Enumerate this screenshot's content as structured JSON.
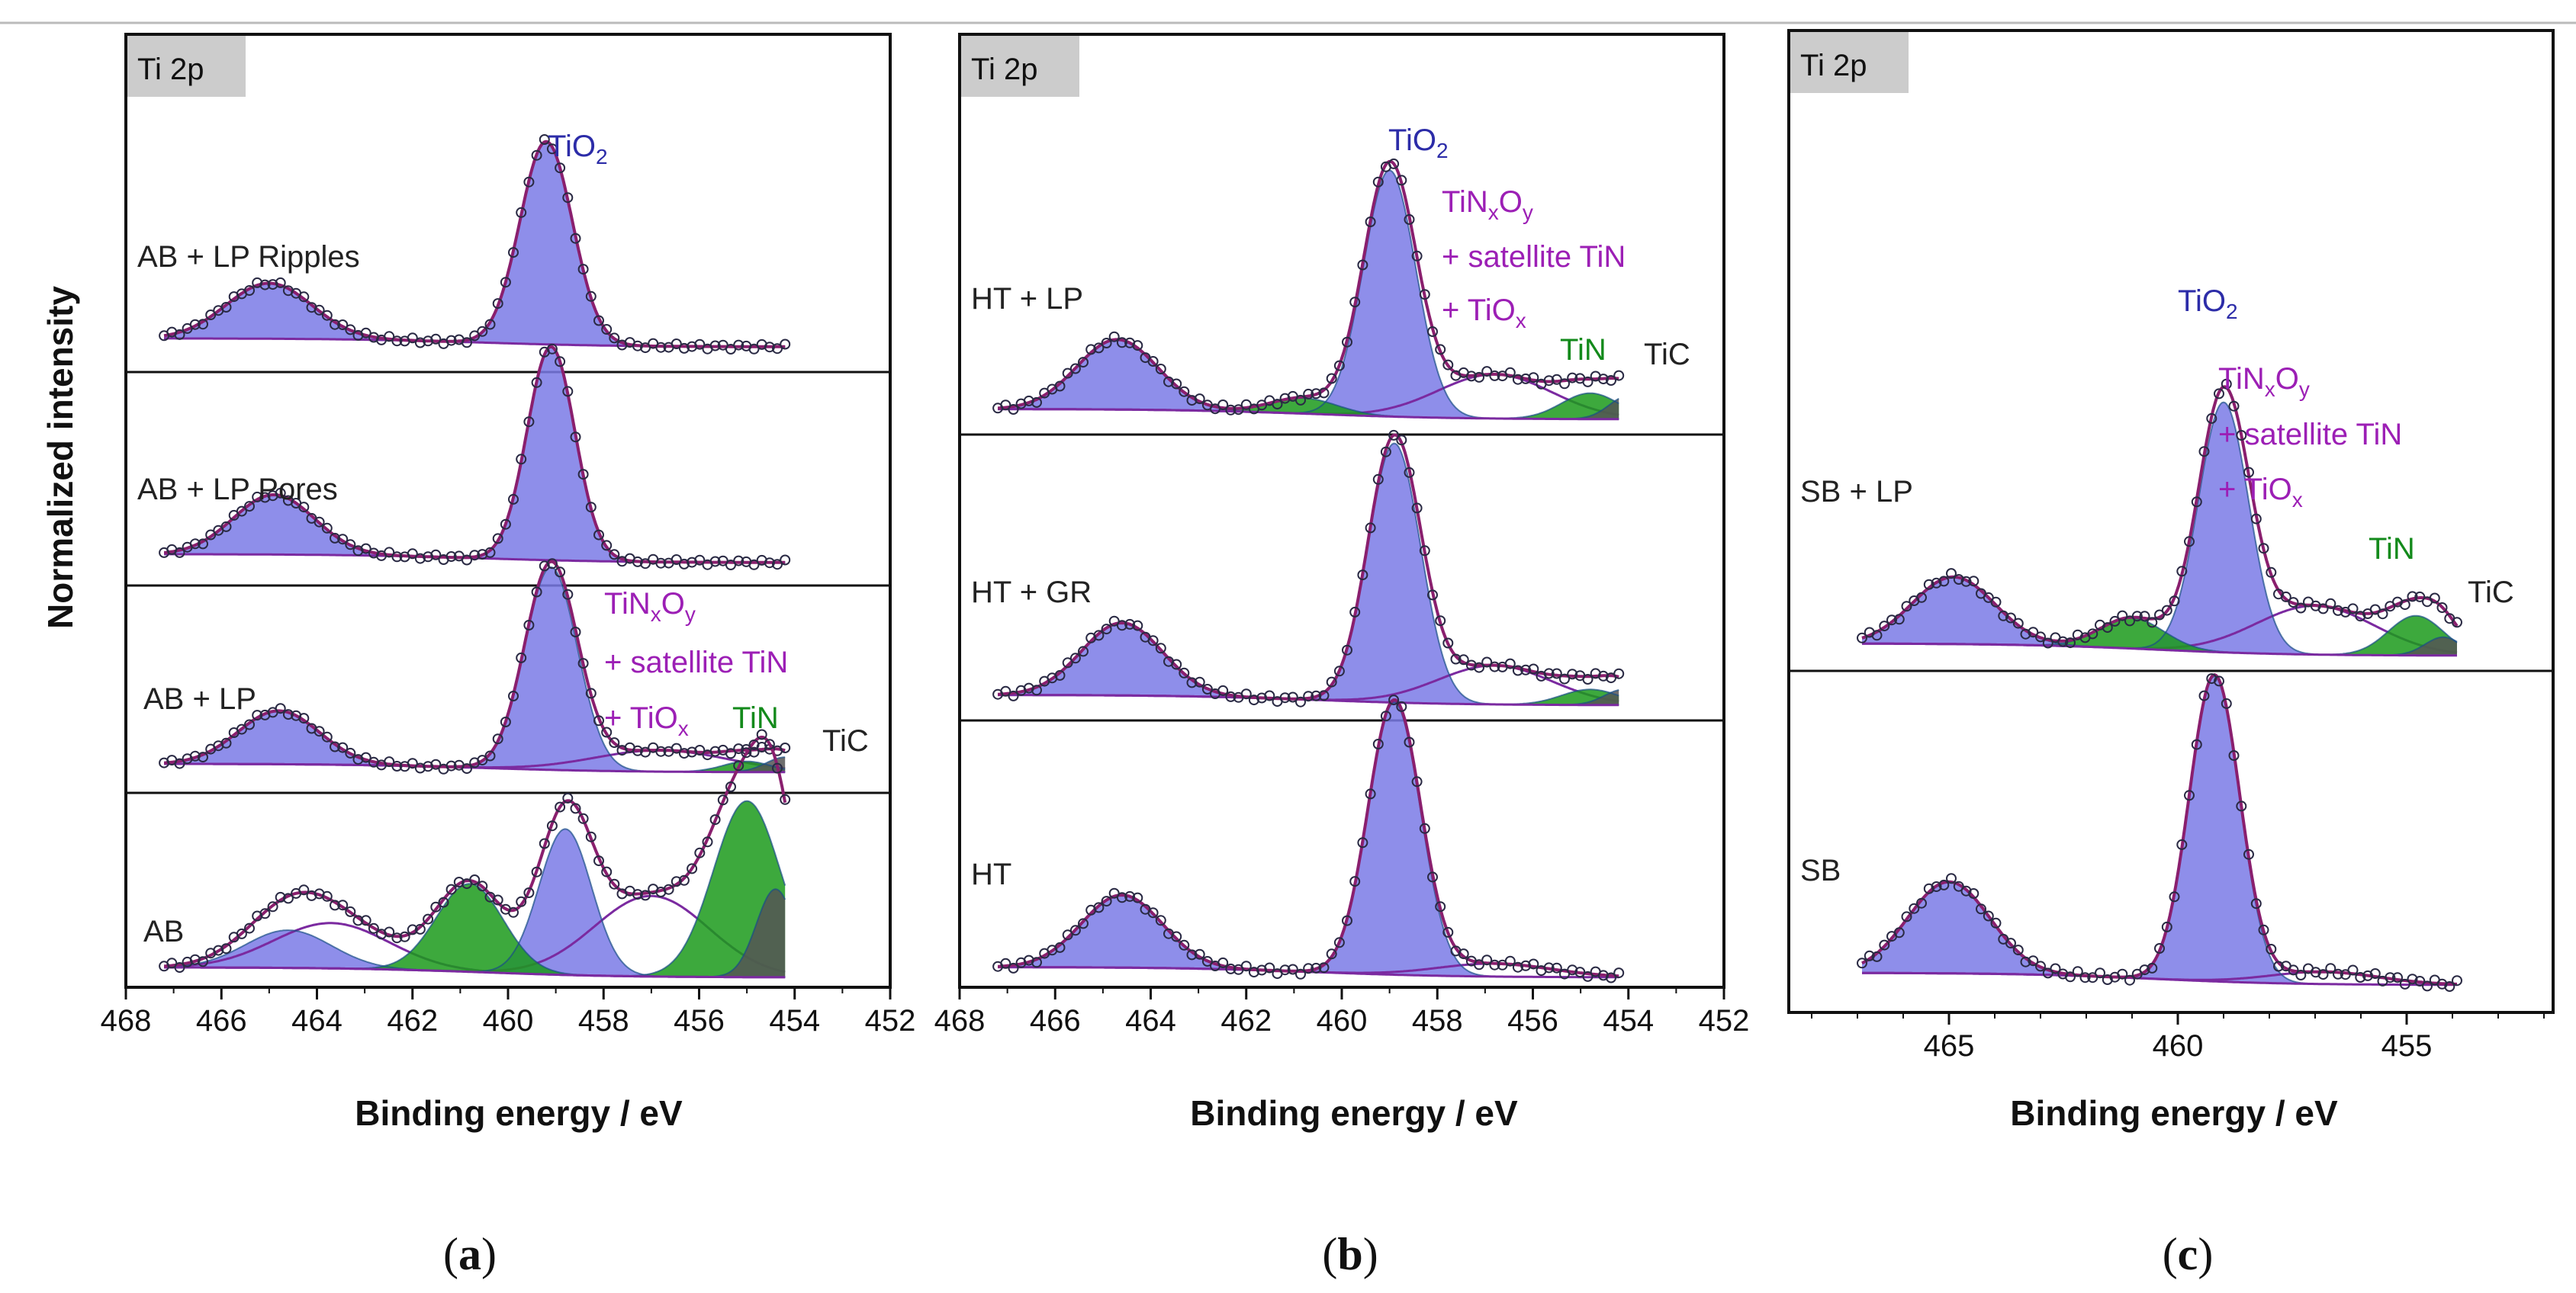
{
  "figure": {
    "ylabel": "Normalized intensity",
    "colors": {
      "tio2": "#2c2ca8",
      "tinxoy": "#9c1fb5",
      "tin": "#138a1b",
      "tic": "#222222",
      "fill_tio2": "#7a7ae6",
      "fill_tin": "#1b9a1b",
      "fill_tic": "#555555",
      "envelope": "#8a1f6e",
      "baseline_line": "#7b2aa0",
      "component_line": "#1a4f86"
    }
  },
  "chart_data": [
    {
      "id": "a",
      "type": "line",
      "panel_label": "Ti 2p",
      "caption": {
        "open": "(",
        "letter": "a",
        "close": ")"
      },
      "xlabel": "Binding energy / eV",
      "ylabel": "Normalized intensity",
      "xlim": [
        468,
        452
      ],
      "xticks": [
        "468",
        "466",
        "464",
        "462",
        "460",
        "458",
        "456",
        "454",
        "452"
      ],
      "series": [
        {
          "name": "AB + LP Ripples",
          "order": 0,
          "peaks": [
            {
              "species": "TiO2",
              "center": 459.2,
              "height": 0.95,
              "width": 0.55,
              "color": "tio2"
            },
            {
              "species": "TiO2",
              "center": 465.0,
              "height": 0.26,
              "width": 0.9,
              "color": "tio2"
            }
          ]
        },
        {
          "name": "AB +  LP Pores",
          "order": 1,
          "peaks": [
            {
              "species": "TiO2",
              "center": 459.1,
              "height": 1.0,
              "width": 0.5,
              "color": "tio2"
            },
            {
              "species": "TiO2",
              "center": 464.9,
              "height": 0.28,
              "width": 0.85,
              "color": "tio2"
            }
          ]
        },
        {
          "name": "AB + LP",
          "order": 2,
          "peaks": [
            {
              "species": "TiO2",
              "center": 459.1,
              "height": 0.95,
              "width": 0.55,
              "color": "tio2"
            },
            {
              "species": "TiO2",
              "center": 464.8,
              "height": 0.25,
              "width": 0.85,
              "color": "tio2"
            },
            {
              "species": "TiNxOy",
              "center": 456.8,
              "height": 0.1,
              "width": 1.4,
              "color": "tinxoy"
            },
            {
              "species": "TiN",
              "center": 455.0,
              "height": 0.05,
              "width": 0.5,
              "color": "tin"
            },
            {
              "species": "TiC",
              "center": 454.2,
              "height": 0.07,
              "width": 0.4,
              "color": "tic"
            }
          ]
        },
        {
          "name": "AB",
          "order": 3,
          "peaks": [
            {
              "species": "TiO2",
              "center": 458.8,
              "height": 0.58,
              "width": 0.55,
              "color": "tio2"
            },
            {
              "species": "TiO2",
              "center": 464.6,
              "height": 0.15,
              "width": 0.9,
              "color": "tio2"
            },
            {
              "species": "TiNxOy",
              "center": 457.0,
              "height": 0.32,
              "width": 1.2,
              "color": "tinxoy"
            },
            {
              "species": "TiNxOy",
              "center": 463.7,
              "height": 0.18,
              "width": 1.2,
              "color": "tinxoy"
            },
            {
              "species": "TiN",
              "center": 455.0,
              "height": 0.7,
              "width": 0.7,
              "color": "tin"
            },
            {
              "species": "TiN",
              "center": 460.8,
              "height": 0.35,
              "width": 0.7,
              "color": "tin"
            },
            {
              "species": "TiC",
              "center": 454.4,
              "height": 0.35,
              "width": 0.4,
              "color": "tic"
            }
          ]
        }
      ],
      "annotations": {
        "tio2": {
          "main": "TiO",
          "sub": "2"
        },
        "tinxoy": {
          "l1a": "TiN",
          "l1b": "x",
          "l1c": "O",
          "l1d": "y",
          "l2": "+ satellite TiN",
          "l3a": "+ TiO",
          "l3b": "x"
        },
        "tin": "TiN",
        "tic": "TiC"
      }
    },
    {
      "id": "b",
      "type": "line",
      "panel_label": "Ti 2p",
      "caption": {
        "open": "(",
        "letter": "b",
        "close": ")"
      },
      "xlabel": "Binding energy / eV",
      "ylabel": "Normalized intensity",
      "xlim": [
        468,
        452
      ],
      "xticks": [
        "468",
        "466",
        "464",
        "462",
        "460",
        "458",
        "456",
        "454",
        "452"
      ],
      "series": [
        {
          "name": "HT + LP",
          "order": 0,
          "peaks": [
            {
              "species": "TiO2",
              "center": 459.0,
              "height": 0.95,
              "width": 0.55,
              "color": "tio2"
            },
            {
              "species": "TiO2",
              "center": 464.7,
              "height": 0.27,
              "width": 0.85,
              "color": "tio2"
            },
            {
              "species": "TiNxOy",
              "center": 456.8,
              "height": 0.17,
              "width": 1.2,
              "color": "tinxoy"
            },
            {
              "species": "TiN",
              "center": 454.8,
              "height": 0.1,
              "width": 0.6,
              "color": "tin"
            },
            {
              "species": "TiN",
              "center": 460.8,
              "height": 0.06,
              "width": 0.7,
              "color": "tin"
            },
            {
              "species": "TiC",
              "center": 454.0,
              "height": 0.09,
              "width": 0.4,
              "color": "tic"
            }
          ]
        },
        {
          "name": "HT + GR",
          "order": 1,
          "peaks": [
            {
              "species": "TiO2",
              "center": 458.9,
              "height": 1.0,
              "width": 0.55,
              "color": "tio2"
            },
            {
              "species": "TiO2",
              "center": 464.6,
              "height": 0.28,
              "width": 0.85,
              "color": "tio2"
            },
            {
              "species": "TiNxOy",
              "center": 456.8,
              "height": 0.15,
              "width": 1.2,
              "color": "tinxoy"
            },
            {
              "species": "TiN",
              "center": 454.8,
              "height": 0.06,
              "width": 0.6,
              "color": "tin"
            },
            {
              "species": "TiC",
              "center": 454.1,
              "height": 0.06,
              "width": 0.4,
              "color": "tic"
            }
          ]
        },
        {
          "name": "HT",
          "order": 2,
          "peaks": [
            {
              "species": "TiO2",
              "center": 458.9,
              "height": 1.05,
              "width": 0.55,
              "color": "tio2"
            },
            {
              "species": "TiO2",
              "center": 464.6,
              "height": 0.28,
              "width": 0.85,
              "color": "tio2"
            },
            {
              "species": "TiNxOy",
              "center": 456.8,
              "height": 0.05,
              "width": 1.2,
              "color": "tinxoy"
            }
          ]
        }
      ],
      "annotations": {
        "tio2": {
          "main": "TiO",
          "sub": "2"
        },
        "tinxoy": {
          "l1a": "TiN",
          "l1b": "x",
          "l1c": "O",
          "l1d": "y",
          "l2": "+ satellite TiN",
          "l3a": "+ TiO",
          "l3b": "x"
        },
        "tin": "TiN",
        "tic": "TiC"
      }
    },
    {
      "id": "c",
      "type": "line",
      "panel_label": "Ti 2p",
      "caption": {
        "open": "(",
        "letter": "c",
        "close": ")"
      },
      "xlabel": "Binding energy / eV",
      "ylabel": "Normalized intensity",
      "xlim": [
        468.5,
        451.8
      ],
      "xticks": [
        "465",
        "460",
        "455"
      ],
      "series": [
        {
          "name": "SB + LP",
          "order": 0,
          "peaks": [
            {
              "species": "TiO2",
              "center": 459.0,
              "height": 0.82,
              "width": 0.55,
              "color": "tio2"
            },
            {
              "species": "TiO2",
              "center": 464.9,
              "height": 0.22,
              "width": 0.9,
              "color": "tio2"
            },
            {
              "species": "TiNxOy",
              "center": 457.0,
              "height": 0.16,
              "width": 1.3,
              "color": "tinxoy"
            },
            {
              "species": "TiN",
              "center": 454.8,
              "height": 0.13,
              "width": 0.6,
              "color": "tin"
            },
            {
              "species": "TiN",
              "center": 461.0,
              "height": 0.1,
              "width": 0.7,
              "color": "tin"
            },
            {
              "species": "TiC",
              "center": 454.2,
              "height": 0.06,
              "width": 0.4,
              "color": "tic"
            }
          ]
        },
        {
          "name": "SB",
          "order": 1,
          "peaks": [
            {
              "species": "TiO2",
              "center": 459.2,
              "height": 1.0,
              "width": 0.55,
              "color": "tio2"
            },
            {
              "species": "TiO2",
              "center": 465.0,
              "height": 0.3,
              "width": 0.9,
              "color": "tio2"
            },
            {
              "species": "TiNxOy",
              "center": 456.8,
              "height": 0.04,
              "width": 1.2,
              "color": "tinxoy"
            }
          ]
        }
      ],
      "annotations": {
        "tio2": {
          "main": "TiO",
          "sub": "2"
        },
        "tinxoy": {
          "l1a": "TiN",
          "l1b": "x",
          "l1c": "O",
          "l1d": "y",
          "l2": "+ satellite TiN",
          "l3a": "+ TiO",
          "l3b": "x"
        },
        "tin": "TiN",
        "tic": "TiC"
      }
    }
  ]
}
